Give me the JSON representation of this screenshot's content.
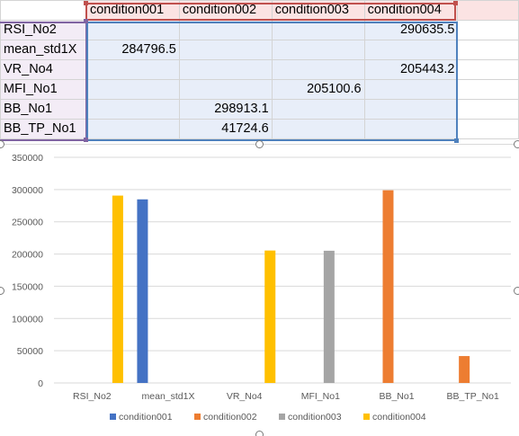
{
  "sheet": {
    "headers": [
      "condition001",
      "condition002",
      "condition003",
      "condition004"
    ],
    "rows": [
      {
        "label": "RSI_No2",
        "cells": [
          "",
          "",
          "",
          "290635.5"
        ]
      },
      {
        "label": "mean_std1X",
        "cells": [
          "284796.5",
          "",
          "",
          ""
        ]
      },
      {
        "label": "VR_No4",
        "cells": [
          "",
          "",
          "",
          "205443.2"
        ]
      },
      {
        "label": "MFI_No1",
        "cells": [
          "",
          "",
          "205100.6",
          ""
        ]
      },
      {
        "label": "BB_No1",
        "cells": [
          "",
          "298913.1",
          "",
          ""
        ]
      },
      {
        "label": "BB_TP_No1",
        "cells": [
          "",
          "41724.6",
          "",
          ""
        ]
      }
    ]
  },
  "chart_data": {
    "type": "bar",
    "title": "",
    "xlabel": "",
    "ylabel": "",
    "categories": [
      "RSI_No2",
      "mean_std1X",
      "VR_No4",
      "MFI_No1",
      "BB_No1",
      "BB_TP_No1"
    ],
    "series": [
      {
        "name": "condition001",
        "color": "#4472c4",
        "values": [
          null,
          284796.5,
          null,
          null,
          null,
          null
        ]
      },
      {
        "name": "condition002",
        "color": "#ed7d31",
        "values": [
          null,
          null,
          null,
          null,
          298913.1,
          41724.6
        ]
      },
      {
        "name": "condition003",
        "color": "#a5a5a5",
        "values": [
          null,
          null,
          null,
          205100.6,
          null,
          null
        ]
      },
      {
        "name": "condition004",
        "color": "#ffc000",
        "values": [
          290635.5,
          null,
          205443.2,
          null,
          null,
          null
        ]
      }
    ],
    "ylim": [
      0,
      350000
    ],
    "yticks": [
      "0",
      "50000",
      "100000",
      "150000",
      "200000",
      "250000",
      "300000",
      "350000"
    ],
    "grid": true,
    "legend_position": "bottom"
  },
  "colors": {
    "header_fill": "#fbe3e3",
    "row_label_fill": "#f3ecf6",
    "value_fill": "#e8eef9",
    "range_red": "#c0504d",
    "range_purple": "#8064a2",
    "range_blue": "#4f81bd"
  }
}
